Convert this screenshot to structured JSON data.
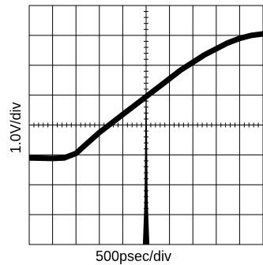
{
  "chart_data": {
    "type": "line",
    "xlabel": "500psec/div",
    "ylabel": "1.0V/div",
    "x_divisions": 10,
    "y_divisions": 8,
    "grid": true,
    "center_graticule_ticks": true,
    "xlim": [
      0,
      10
    ],
    "ylim": [
      0,
      8
    ],
    "series": [
      {
        "x": [
          0,
          1,
          1.5,
          2,
          2.5,
          3,
          3.5,
          4,
          4.5,
          5,
          5.5,
          6,
          6.5,
          7,
          7.5,
          8,
          8.5,
          9,
          9.5,
          10
        ],
        "y": [
          2.9,
          2.88,
          2.9,
          3.05,
          3.4,
          3.75,
          4.05,
          4.35,
          4.65,
          4.95,
          5.25,
          5.55,
          5.85,
          6.1,
          6.35,
          6.55,
          6.75,
          6.9,
          7.0,
          7.05
        ]
      },
      {
        "x": [
          4.88,
          4.95,
          5.0,
          5.05,
          5.12
        ],
        "y": [
          0,
          1.5,
          5.2,
          1.5,
          0
        ]
      }
    ],
    "colors": {
      "grid": "#000000",
      "trace": "#000000",
      "background": "#ffffff"
    }
  }
}
